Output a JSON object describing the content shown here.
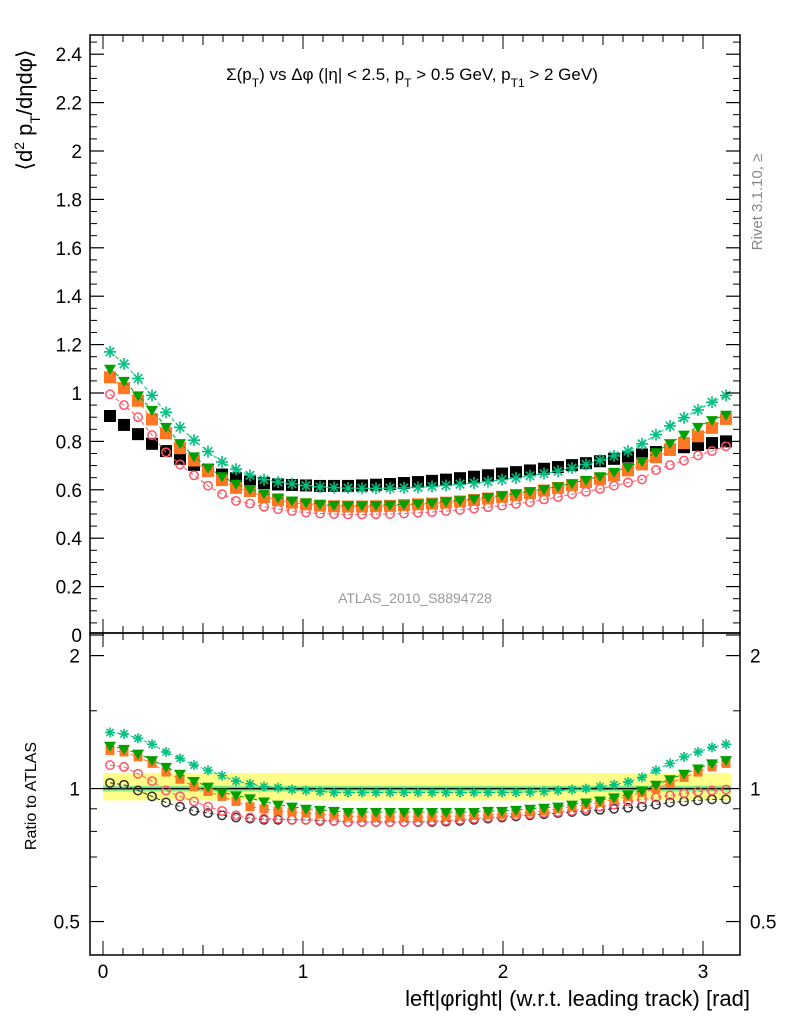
{
  "chart_data": [
    {
      "panel": "main",
      "type": "scatter",
      "title": "Σ(p_T) vs Δφ (|η| < 2.5, p_T > 0.5 GeV, p_T1 > 2 GeV)",
      "ylabel": "⟨d² p_T/dηdφ⟩",
      "xlabel": "left|φright| (w.r.t. leading track) [rad]",
      "xlim": [
        -0.07,
        3.2
      ],
      "ylim": [
        0,
        2.48
      ],
      "x_ticks": [
        0,
        1,
        2,
        3
      ],
      "y_ticks": [
        0,
        0.2,
        0.4,
        0.6,
        0.8,
        1,
        1.2,
        1.4,
        1.6,
        1.8,
        2,
        2.2,
        2.4
      ],
      "y_tick_labels": [
        "0",
        "0.2",
        "0.4",
        "0.6",
        "0.8",
        "1",
        "1.2",
        "1.4",
        "1.6",
        "1.8",
        "2",
        "2.2",
        "2.4"
      ],
      "annotation": "ATLAS_2010_S8894728",
      "side_label": "Rivet 3.1.10, ≥",
      "x": [
        0.035,
        0.105,
        0.175,
        0.245,
        0.315,
        0.385,
        0.455,
        0.525,
        0.595,
        0.665,
        0.735,
        0.805,
        0.875,
        0.945,
        1.015,
        1.085,
        1.155,
        1.225,
        1.295,
        1.365,
        1.435,
        1.505,
        1.575,
        1.645,
        1.715,
        1.785,
        1.855,
        1.925,
        1.995,
        2.065,
        2.135,
        2.205,
        2.275,
        2.345,
        2.415,
        2.485,
        2.555,
        2.625,
        2.695,
        2.765,
        2.835,
        2.905,
        2.975,
        3.045,
        3.115
      ],
      "series": [
        {
          "color": "#000000",
          "marker": "square",
          "values": [
            0.905,
            0.868,
            0.83,
            0.79,
            0.76,
            0.728,
            0.703,
            0.683,
            0.663,
            0.648,
            0.638,
            0.628,
            0.622,
            0.62,
            0.618,
            0.616,
            0.616,
            0.616,
            0.618,
            0.621,
            0.624,
            0.628,
            0.632,
            0.637,
            0.642,
            0.648,
            0.654,
            0.66,
            0.667,
            0.673,
            0.68,
            0.687,
            0.694,
            0.702,
            0.71,
            0.718,
            0.728,
            0.737,
            0.746,
            0.756,
            0.766,
            0.776,
            0.785,
            0.793,
            0.8
          ]
        },
        {
          "color": "#ff5566",
          "marker": "open-circle",
          "values": [
            0.995,
            0.95,
            0.9,
            0.826,
            0.755,
            0.705,
            0.66,
            0.617,
            0.582,
            0.554,
            0.543,
            0.53,
            0.52,
            0.512,
            0.506,
            0.502,
            0.5,
            0.498,
            0.498,
            0.499,
            0.5,
            0.502,
            0.505,
            0.508,
            0.512,
            0.517,
            0.522,
            0.528,
            0.535,
            0.542,
            0.549,
            0.56,
            0.57,
            0.582,
            0.592,
            0.604,
            0.617,
            0.63,
            0.643,
            0.682,
            0.702,
            0.721,
            0.742,
            0.76,
            0.78
          ]
        },
        {
          "color": "#ff7722",
          "marker": "square",
          "values": [
            1.065,
            1.02,
            0.968,
            0.891,
            0.834,
            0.772,
            0.721,
            0.677,
            0.64,
            0.608,
            0.595,
            0.57,
            0.557,
            0.547,
            0.54,
            0.535,
            0.532,
            0.531,
            0.531,
            0.532,
            0.534,
            0.537,
            0.54,
            0.543,
            0.547,
            0.552,
            0.558,
            0.564,
            0.571,
            0.578,
            0.587,
            0.597,
            0.608,
            0.619,
            0.632,
            0.645,
            0.66,
            0.68,
            0.705,
            0.735,
            0.765,
            0.793,
            0.821,
            0.856,
            0.893
          ]
        },
        {
          "color": "#00a000",
          "marker": "triangle-down",
          "values": [
            1.1,
            1.05,
            0.99,
            0.93,
            0.86,
            0.793,
            0.738,
            0.692,
            0.656,
            0.625,
            0.603,
            0.585,
            0.568,
            0.556,
            0.548,
            0.541,
            0.537,
            0.536,
            0.536,
            0.537,
            0.538,
            0.54,
            0.543,
            0.547,
            0.552,
            0.557,
            0.563,
            0.57,
            0.577,
            0.585,
            0.594,
            0.603,
            0.614,
            0.627,
            0.641,
            0.656,
            0.674,
            0.694,
            0.719,
            0.755,
            0.793,
            0.828,
            0.86,
            0.888,
            0.91
          ]
        },
        {
          "color": "#00c080",
          "marker": "star",
          "values": [
            1.17,
            1.12,
            1.06,
            0.99,
            0.92,
            0.858,
            0.805,
            0.758,
            0.715,
            0.685,
            0.66,
            0.642,
            0.632,
            0.625,
            0.617,
            0.612,
            0.609,
            0.607,
            0.606,
            0.606,
            0.607,
            0.608,
            0.61,
            0.614,
            0.618,
            0.623,
            0.628,
            0.634,
            0.642,
            0.649,
            0.658,
            0.667,
            0.677,
            0.69,
            0.705,
            0.722,
            0.74,
            0.76,
            0.79,
            0.828,
            0.864,
            0.898,
            0.93,
            0.962,
            0.99
          ]
        }
      ]
    },
    {
      "panel": "ratio",
      "type": "scatter",
      "ylabel": "Ratio to ATLAS",
      "xlabel": "left|φright| (w.r.t. leading track) [rad]",
      "xlim": [
        -0.07,
        3.2
      ],
      "ylim": [
        0.42,
        2.25
      ],
      "y_scale": "log",
      "x_ticks": [
        0,
        1,
        2,
        3
      ],
      "y_ticks": [
        0.5,
        1,
        2
      ],
      "y_tick_labels": [
        "0.5",
        "1",
        "2"
      ],
      "reference_line": 1,
      "band_outer": [
        0.94,
        1.085
      ],
      "band_inner": [
        0.985,
        1.015
      ],
      "band_outer_color": "#ffff88",
      "band_inner_color": "#88ee88",
      "x": [
        0.035,
        0.105,
        0.175,
        0.245,
        0.315,
        0.385,
        0.455,
        0.525,
        0.595,
        0.665,
        0.735,
        0.805,
        0.875,
        0.945,
        1.015,
        1.085,
        1.155,
        1.225,
        1.295,
        1.365,
        1.435,
        1.505,
        1.575,
        1.645,
        1.715,
        1.785,
        1.855,
        1.925,
        1.995,
        2.065,
        2.135,
        2.205,
        2.275,
        2.345,
        2.415,
        2.485,
        2.555,
        2.625,
        2.695,
        2.765,
        2.835,
        2.905,
        2.975,
        3.045,
        3.115
      ],
      "series": [
        {
          "color": "#333333",
          "marker": "open-circle",
          "values": [
            1.03,
            1.02,
            0.99,
            0.96,
            0.93,
            0.91,
            0.89,
            0.88,
            0.87,
            0.86,
            0.855,
            0.85,
            0.85,
            0.85,
            0.85,
            0.845,
            0.845,
            0.84,
            0.84,
            0.84,
            0.84,
            0.84,
            0.84,
            0.84,
            0.842,
            0.845,
            0.85,
            0.855,
            0.86,
            0.865,
            0.87,
            0.875,
            0.88,
            0.885,
            0.89,
            0.895,
            0.9,
            0.905,
            0.91,
            0.92,
            0.93,
            0.935,
            0.94,
            0.945,
            0.945
          ]
        },
        {
          "color": "#ff5566",
          "marker": "open-circle",
          "values": [
            1.13,
            1.12,
            1.08,
            1.04,
            0.99,
            0.96,
            0.935,
            0.91,
            0.89,
            0.87,
            0.86,
            0.855,
            0.855,
            0.85,
            0.85,
            0.848,
            0.845,
            0.84,
            0.84,
            0.84,
            0.84,
            0.84,
            0.842,
            0.844,
            0.846,
            0.85,
            0.855,
            0.86,
            0.865,
            0.87,
            0.875,
            0.88,
            0.885,
            0.89,
            0.9,
            0.91,
            0.92,
            0.935,
            0.945,
            0.955,
            0.965,
            0.975,
            0.985,
            0.99,
            0.995
          ]
        },
        {
          "color": "#ff7722",
          "marker": "square",
          "values": [
            1.22,
            1.21,
            1.18,
            1.14,
            1.09,
            1.05,
            1.01,
            0.985,
            0.96,
            0.935,
            0.91,
            0.9,
            0.89,
            0.885,
            0.88,
            0.875,
            0.87,
            0.865,
            0.862,
            0.862,
            0.862,
            0.862,
            0.862,
            0.862,
            0.865,
            0.867,
            0.87,
            0.872,
            0.875,
            0.88,
            0.885,
            0.89,
            0.9,
            0.91,
            0.92,
            0.93,
            0.945,
            0.96,
            0.98,
            1.0,
            1.03,
            1.06,
            1.09,
            1.12,
            1.14
          ]
        },
        {
          "color": "#00a000",
          "marker": "triangle-down",
          "values": [
            1.25,
            1.23,
            1.2,
            1.16,
            1.12,
            1.08,
            1.04,
            1.01,
            0.98,
            0.965,
            0.95,
            0.935,
            0.92,
            0.91,
            0.9,
            0.895,
            0.89,
            0.885,
            0.885,
            0.885,
            0.885,
            0.885,
            0.885,
            0.885,
            0.885,
            0.885,
            0.885,
            0.89,
            0.89,
            0.895,
            0.9,
            0.905,
            0.91,
            0.92,
            0.93,
            0.94,
            0.955,
            0.97,
            0.99,
            1.02,
            1.05,
            1.08,
            1.11,
            1.14,
            1.16
          ]
        },
        {
          "color": "#00c080",
          "marker": "star",
          "values": [
            1.34,
            1.33,
            1.3,
            1.26,
            1.21,
            1.17,
            1.13,
            1.1,
            1.07,
            1.04,
            1.025,
            1.01,
            1.005,
            0.995,
            0.99,
            0.985,
            0.98,
            0.98,
            0.98,
            0.98,
            0.98,
            0.98,
            0.98,
            0.98,
            0.98,
            0.98,
            0.98,
            0.98,
            0.98,
            0.98,
            0.982,
            0.985,
            0.99,
            0.995,
            1.0,
            1.01,
            1.02,
            1.035,
            1.06,
            1.1,
            1.14,
            1.18,
            1.21,
            1.24,
            1.26
          ]
        }
      ]
    }
  ]
}
